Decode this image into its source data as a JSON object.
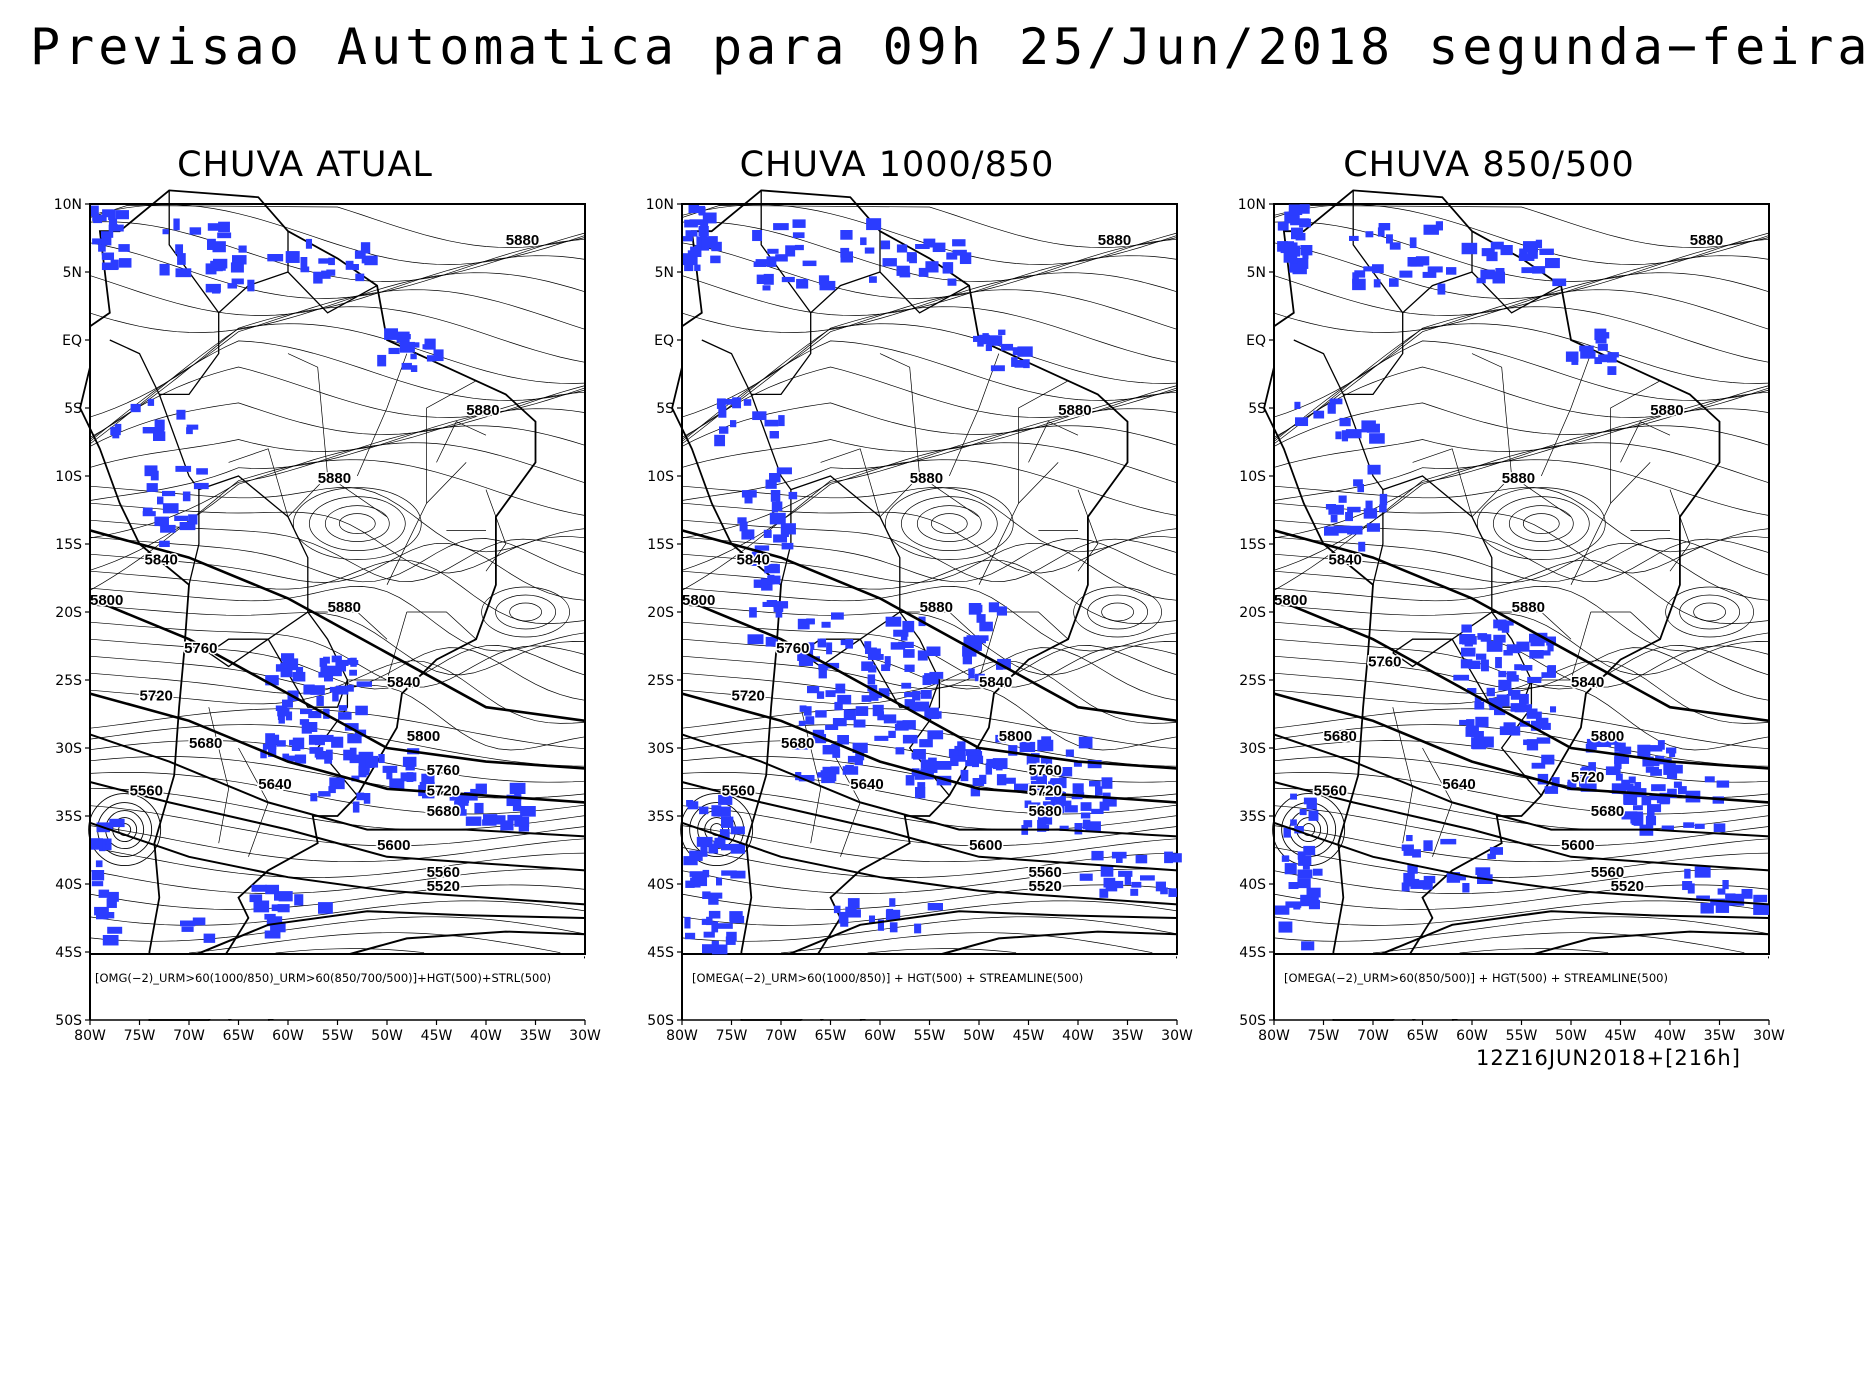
{
  "title": "Previsao Automatica para 09h 25/Jun/2018 segunda−feira",
  "run_label": "12Z16JUN2018+[216h]",
  "colors": {
    "precip": "#2b3cff",
    "lines": "#000000",
    "background": "#ffffff"
  },
  "lat_labels": [
    "10N",
    "5N",
    "EQ",
    "5S",
    "10S",
    "15S",
    "20S",
    "25S",
    "30S",
    "35S",
    "40S",
    "45S",
    "50S"
  ],
  "lon_labels": [
    "80W",
    "75W",
    "70W",
    "65W",
    "60W",
    "55W",
    "50W",
    "45W",
    "40W",
    "35W",
    "30W"
  ],
  "panels": [
    {
      "title": "CHUVA ATUAL",
      "legend": "[OMG(−2)_URM>60(1000/850)_URM>60(850/700/500)]+HGT(500)+STRL(500)",
      "contour_labels": [
        "5880",
        "5880",
        "5880",
        "5880",
        "5840",
        "5800",
        "5760",
        "5720",
        "5680",
        "5640",
        "5560",
        "5840",
        "5800",
        "5760",
        "5720",
        "5680",
        "5600",
        "5560",
        "5520"
      ]
    },
    {
      "title": "CHUVA 1000/850",
      "legend": "[OMEGA(−2)_URM>60(1000/850)] + HGT(500) + STREAMLINE(500)",
      "contour_labels": [
        "5880",
        "5880",
        "5880",
        "5880",
        "5840",
        "5800",
        "5760",
        "5720",
        "5680",
        "5640",
        "5560",
        "5840",
        "5800",
        "5760",
        "5720",
        "5680",
        "5600",
        "5560",
        "5520"
      ]
    },
    {
      "title": "CHUVA 850/500",
      "legend": "[OMEGA(−2)_URM>60(850/500)] + HGT(500) + STREAMLINE(500)",
      "contour_labels": [
        "5880",
        "5880",
        "5880",
        "5880",
        "5840",
        "5800",
        "5760",
        "5680",
        "5640",
        "5560",
        "5840",
        "5800",
        "5720",
        "5680",
        "5600",
        "5560",
        "5520"
      ]
    }
  ]
}
